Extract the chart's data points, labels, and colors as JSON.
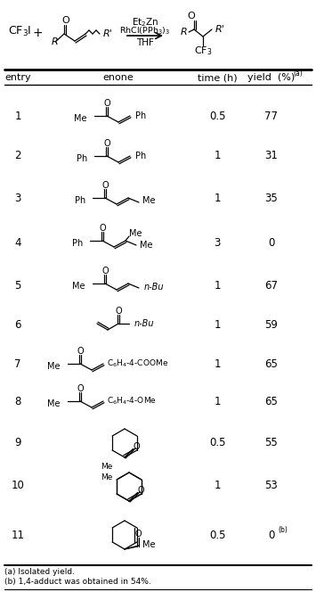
{
  "bg_color": "#ffffff",
  "text_color": "#000000",
  "line_color": "#000000",
  "footnote_a": "(a) Isolated yield.",
  "footnote_b": "(b) 1,4-adduct was obtained in 54%.",
  "entries": [
    {
      "num": "1",
      "time": "0.5",
      "yield": "77",
      "yield_sup": ""
    },
    {
      "num": "2",
      "time": "1",
      "yield": "31",
      "yield_sup": ""
    },
    {
      "num": "3",
      "time": "1",
      "yield": "35",
      "yield_sup": ""
    },
    {
      "num": "4",
      "time": "3",
      "yield": "0",
      "yield_sup": ""
    },
    {
      "num": "5",
      "time": "1",
      "yield": "67",
      "yield_sup": ""
    },
    {
      "num": "6",
      "time": "1",
      "yield": "59",
      "yield_sup": ""
    },
    {
      "num": "7",
      "time": "1",
      "yield": "65",
      "yield_sup": ""
    },
    {
      "num": "8",
      "time": "1",
      "yield": "65",
      "yield_sup": ""
    },
    {
      "num": "9",
      "time": "0.5",
      "yield": "55",
      "yield_sup": ""
    },
    {
      "num": "10",
      "time": "1",
      "yield": "53",
      "yield_sup": ""
    },
    {
      "num": "11",
      "time": "0.5",
      "yield": "0",
      "yield_sup": "(b)"
    }
  ]
}
